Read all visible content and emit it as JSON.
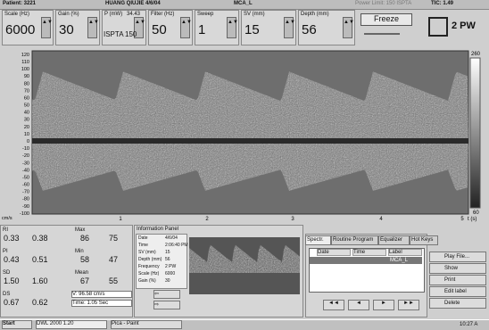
{
  "header": {
    "patient": "Patient: 3221",
    "name": "HUANG QIUJIE 4/6/04",
    "vessel": "MCA_L",
    "power_limit": "Power Limit: 150 ISPTA",
    "tic": "TIC: 1.49"
  },
  "controls": {
    "scale": {
      "label": "Scale (Hz)",
      "value": "6000"
    },
    "gain": {
      "label": "Gain (%)",
      "value": "30"
    },
    "power": {
      "label": "P (mW)",
      "value": "34.43",
      "ispta_label": "ISPTA",
      "ispta": "150"
    },
    "filter": {
      "label": "Filter (Hz)",
      "value": "50"
    },
    "sweep": {
      "label": "Sweep",
      "value": "1"
    },
    "sv": {
      "label": "SV (mm)",
      "value": "15"
    },
    "depth": {
      "label": "Depth (mm)",
      "value": "56"
    },
    "freeze": "Freeze",
    "mode": "2 PW"
  },
  "spectrum": {
    "y_labels": [
      "120",
      "110",
      "100",
      "90",
      "80",
      "70",
      "60",
      "50",
      "40",
      "30",
      "20",
      "10",
      "0",
      "-10",
      "-20",
      "-30",
      "-40",
      "-50",
      "-60",
      "-70",
      "-80",
      "-90",
      "-100"
    ],
    "y_unit": "cm/s",
    "x_labels": [
      "1",
      "2",
      "3",
      "4",
      "5"
    ],
    "x_unit": "t (s)",
    "colorbar_top": "260",
    "colorbar_bottom": "60"
  },
  "measurements": {
    "rows": [
      {
        "label": "RI",
        "values": [
          "0.33",
          "0.38"
        ],
        "label2": "Max",
        "values2": [
          "86",
          "75"
        ]
      },
      {
        "label": "PI",
        "values": [
          "0.43",
          "0.51"
        ],
        "label2": "Min",
        "values2": [
          "58",
          "47"
        ]
      },
      {
        "label": "SD",
        "values": [
          "1.50",
          "1.60"
        ],
        "label2": "Mean",
        "values2": [
          "67",
          "55"
        ]
      },
      {
        "label": "DS",
        "values": [
          "0.67",
          "0.62"
        ]
      }
    ],
    "cursor_v": "V: 96.58 cm/s",
    "cursor_time": "Time: 1.05 Sec"
  },
  "info_panel": {
    "title": "Information Panel",
    "rows": [
      [
        "Date",
        "4/6/04"
      ],
      [
        "Time",
        "2:06:40 PM"
      ],
      [
        "SV (mm)",
        "15"
      ],
      [
        "Depth (mm)",
        "56"
      ],
      [
        "Frequency",
        "2 PW"
      ],
      [
        "Scale (Hz)",
        "6000"
      ],
      [
        "Gain (%)",
        "30"
      ]
    ]
  },
  "tabs": [
    "Spectr.",
    "Routine Program",
    "Equalizer",
    "Hot Keys"
  ],
  "file_table": {
    "columns": [
      "Date",
      "Time",
      "Label"
    ],
    "label": "MCA_L"
  },
  "buttons": [
    "Play File...",
    "Show",
    "Print",
    "Edit label",
    "Delete"
  ],
  "taskbar": {
    "start": "Start",
    "items": [
      "DWL 2000 1.20",
      "Pica - Paint"
    ],
    "clock": "10:27 A"
  }
}
